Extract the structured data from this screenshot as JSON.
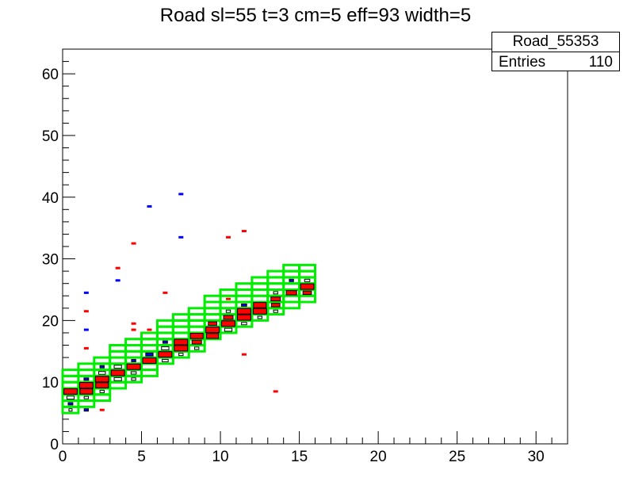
{
  "title": "Road sl=55 t=3 cm=5 eff=93 width=5",
  "stats": {
    "name": "Road_55353",
    "entries_label": "Entries",
    "entries_value": "110"
  },
  "colors": {
    "road": "#00ee00",
    "hit_major": "#ff0000",
    "hit_minor": "#0000ff",
    "box": "#000000"
  },
  "chart_data": {
    "type": "heatmap",
    "title": "Road sl=55 t=3 cm=5 eff=93 width=5",
    "xlim": [
      0,
      32
    ],
    "ylim": [
      0,
      64
    ],
    "x_ticks": [
      0,
      5,
      10,
      15,
      20,
      25,
      30
    ],
    "y_ticks": [
      0,
      10,
      20,
      30,
      40,
      50,
      60
    ],
    "grid": false,
    "legend": "stats box top-right",
    "road_cells": [
      [
        0,
        5
      ],
      [
        0,
        6
      ],
      [
        0,
        7
      ],
      [
        0,
        8
      ],
      [
        0,
        9
      ],
      [
        0,
        10
      ],
      [
        0,
        11
      ],
      [
        1,
        6
      ],
      [
        1,
        7
      ],
      [
        1,
        8
      ],
      [
        1,
        9
      ],
      [
        1,
        10
      ],
      [
        1,
        11
      ],
      [
        1,
        12
      ],
      [
        2,
        7
      ],
      [
        2,
        8
      ],
      [
        2,
        9
      ],
      [
        2,
        10
      ],
      [
        2,
        11
      ],
      [
        2,
        12
      ],
      [
        2,
        13
      ],
      [
        3,
        9
      ],
      [
        3,
        10
      ],
      [
        3,
        11
      ],
      [
        3,
        12
      ],
      [
        3,
        13
      ],
      [
        3,
        14
      ],
      [
        3,
        15
      ],
      [
        4,
        10
      ],
      [
        4,
        11
      ],
      [
        4,
        12
      ],
      [
        4,
        13
      ],
      [
        4,
        14
      ],
      [
        4,
        15
      ],
      [
        4,
        16
      ],
      [
        5,
        11
      ],
      [
        5,
        12
      ],
      [
        5,
        13
      ],
      [
        5,
        14
      ],
      [
        5,
        15
      ],
      [
        5,
        16
      ],
      [
        5,
        17
      ],
      [
        6,
        13
      ],
      [
        6,
        14
      ],
      [
        6,
        15
      ],
      [
        6,
        16
      ],
      [
        6,
        17
      ],
      [
        6,
        18
      ],
      [
        6,
        19
      ],
      [
        7,
        14
      ],
      [
        7,
        15
      ],
      [
        7,
        16
      ],
      [
        7,
        17
      ],
      [
        7,
        18
      ],
      [
        7,
        19
      ],
      [
        7,
        20
      ],
      [
        8,
        15
      ],
      [
        8,
        16
      ],
      [
        8,
        17
      ],
      [
        8,
        18
      ],
      [
        8,
        19
      ],
      [
        8,
        20
      ],
      [
        8,
        21
      ],
      [
        9,
        17
      ],
      [
        9,
        18
      ],
      [
        9,
        19
      ],
      [
        9,
        20
      ],
      [
        9,
        21
      ],
      [
        9,
        22
      ],
      [
        9,
        23
      ],
      [
        10,
        18
      ],
      [
        10,
        19
      ],
      [
        10,
        20
      ],
      [
        10,
        21
      ],
      [
        10,
        22
      ],
      [
        10,
        23
      ],
      [
        10,
        24
      ],
      [
        11,
        19
      ],
      [
        11,
        20
      ],
      [
        11,
        21
      ],
      [
        11,
        22
      ],
      [
        11,
        23
      ],
      [
        11,
        24
      ],
      [
        11,
        25
      ],
      [
        12,
        20
      ],
      [
        12,
        21
      ],
      [
        12,
        22
      ],
      [
        12,
        23
      ],
      [
        12,
        24
      ],
      [
        12,
        25
      ],
      [
        12,
        26
      ],
      [
        13,
        21
      ],
      [
        13,
        22
      ],
      [
        13,
        23
      ],
      [
        13,
        24
      ],
      [
        13,
        25
      ],
      [
        13,
        26
      ],
      [
        13,
        27
      ],
      [
        14,
        22
      ],
      [
        14,
        23
      ],
      [
        14,
        24
      ],
      [
        14,
        25
      ],
      [
        14,
        26
      ],
      [
        14,
        27
      ],
      [
        14,
        28
      ],
      [
        15,
        23
      ],
      [
        15,
        24
      ],
      [
        15,
        25
      ],
      [
        15,
        26
      ],
      [
        15,
        27
      ],
      [
        15,
        28
      ]
    ],
    "hit_bins": [
      {
        "x": 0.5,
        "y": 8.5,
        "w": 1.0
      },
      {
        "x": 0.5,
        "y": 7.5,
        "w": 0.3
      },
      {
        "x": 0.5,
        "y": 6.5,
        "w": 0.12,
        "c": "b"
      },
      {
        "x": 0.5,
        "y": 5.5,
        "w": 0.05
      },
      {
        "x": 1.5,
        "y": 9.5,
        "w": 1.0
      },
      {
        "x": 1.5,
        "y": 8.5,
        "w": 0.9
      },
      {
        "x": 1.5,
        "y": 7.5,
        "w": 0.1
      },
      {
        "x": 1.5,
        "y": 10.5,
        "w": 0.12,
        "c": "b"
      },
      {
        "x": 1.5,
        "y": 5.5,
        "w": 0.1,
        "c": "b"
      },
      {
        "x": 2.5,
        "y": 10.5,
        "w": 1.0
      },
      {
        "x": 2.5,
        "y": 9.5,
        "w": 0.9
      },
      {
        "x": 2.5,
        "y": 11.5,
        "w": 0.25
      },
      {
        "x": 2.5,
        "y": 8.5,
        "w": 0.1
      },
      {
        "x": 2.5,
        "y": 12.5,
        "w": 0.1,
        "c": "b"
      },
      {
        "x": 3.5,
        "y": 11.5,
        "w": 1.0
      },
      {
        "x": 3.5,
        "y": 10.5,
        "w": 0.3
      },
      {
        "x": 3.5,
        "y": 12.5,
        "w": 0.3
      },
      {
        "x": 4.5,
        "y": 12.5,
        "w": 1.0
      },
      {
        "x": 4.5,
        "y": 11.5,
        "w": 0.15
      },
      {
        "x": 4.5,
        "y": 13.5,
        "w": 0.1,
        "c": "b"
      },
      {
        "x": 4.5,
        "y": 10.5,
        "w": 0.1
      },
      {
        "x": 5.5,
        "y": 13.5,
        "w": 1.0
      },
      {
        "x": 5.5,
        "y": 14.5,
        "w": 0.3,
        "c": "b"
      },
      {
        "x": 6.5,
        "y": 14.5,
        "w": 1.0
      },
      {
        "x": 6.5,
        "y": 15.5,
        "w": 0.3
      },
      {
        "x": 6.5,
        "y": 13.5,
        "w": 0.2
      },
      {
        "x": 6.5,
        "y": 16.5,
        "w": 0.12,
        "c": "b"
      },
      {
        "x": 7.5,
        "y": 15.5,
        "w": 1.0
      },
      {
        "x": 7.5,
        "y": 16.5,
        "w": 1.0
      },
      {
        "x": 7.5,
        "y": 14.5,
        "w": 0.1
      },
      {
        "x": 8.5,
        "y": 17.5,
        "w": 0.9
      },
      {
        "x": 8.5,
        "y": 16.5,
        "w": 0.5
      },
      {
        "x": 8.5,
        "y": 15.5,
        "w": 0.1
      },
      {
        "x": 9.5,
        "y": 18.5,
        "w": 1.0
      },
      {
        "x": 9.5,
        "y": 17.5,
        "w": 0.8
      },
      {
        "x": 9.5,
        "y": 19.5,
        "w": 0.4,
        "c": "b"
      },
      {
        "x": 10.5,
        "y": 19.5,
        "w": 1.0
      },
      {
        "x": 10.5,
        "y": 20.5,
        "w": 0.5
      },
      {
        "x": 10.5,
        "y": 18.5,
        "w": 0.3
      },
      {
        "x": 10.5,
        "y": 21.5,
        "w": 0.1
      },
      {
        "x": 11.5,
        "y": 20.5,
        "w": 1.0
      },
      {
        "x": 11.5,
        "y": 21.5,
        "w": 1.0
      },
      {
        "x": 11.5,
        "y": 19.5,
        "w": 0.15
      },
      {
        "x": 11.5,
        "y": 22.5,
        "w": 0.15,
        "c": "b"
      },
      {
        "x": 12.5,
        "y": 21.5,
        "w": 1.0
      },
      {
        "x": 12.5,
        "y": 22.5,
        "w": 0.9
      },
      {
        "x": 12.5,
        "y": 20.5,
        "w": 0.1
      },
      {
        "x": 13.5,
        "y": 22.5,
        "w": 0.4
      },
      {
        "x": 13.5,
        "y": 23.5,
        "w": 0.5,
        "c": "b"
      },
      {
        "x": 13.5,
        "y": 21.5,
        "w": 0.1
      },
      {
        "x": 13.5,
        "y": 24.5,
        "w": 0.1
      },
      {
        "x": 14.5,
        "y": 24.5,
        "w": 0.6
      },
      {
        "x": 14.5,
        "y": 26.5,
        "w": 0.1,
        "c": "b"
      },
      {
        "x": 15.5,
        "y": 25.5,
        "w": 1.0
      },
      {
        "x": 15.5,
        "y": 24.5,
        "w": 0.4
      },
      {
        "x": 15.5,
        "y": 26.5,
        "w": 0.15
      }
    ],
    "outlier_bins": [
      {
        "x": 1.5,
        "y": 24.5,
        "c": "b"
      },
      {
        "x": 1.5,
        "y": 21.5,
        "c": "r"
      },
      {
        "x": 1.5,
        "y": 18.5,
        "c": "b"
      },
      {
        "x": 1.5,
        "y": 15.5,
        "c": "r"
      },
      {
        "x": 2.5,
        "y": 5.5,
        "c": "r"
      },
      {
        "x": 3.5,
        "y": 28.5,
        "c": "r"
      },
      {
        "x": 3.5,
        "y": 26.5,
        "c": "b"
      },
      {
        "x": 4.5,
        "y": 32.5,
        "c": "r"
      },
      {
        "x": 4.5,
        "y": 19.5,
        "c": "r"
      },
      {
        "x": 4.5,
        "y": 18.5,
        "c": "r"
      },
      {
        "x": 5.5,
        "y": 38.5,
        "c": "b"
      },
      {
        "x": 5.5,
        "y": 18.5,
        "c": "r"
      },
      {
        "x": 6.5,
        "y": 24.5,
        "c": "r"
      },
      {
        "x": 7.5,
        "y": 40.5,
        "c": "b"
      },
      {
        "x": 7.5,
        "y": 33.5,
        "c": "b"
      },
      {
        "x": 10.5,
        "y": 33.5,
        "c": "r"
      },
      {
        "x": 10.5,
        "y": 23.5,
        "c": "r"
      },
      {
        "x": 11.5,
        "y": 34.5,
        "c": "r"
      },
      {
        "x": 11.5,
        "y": 14.5,
        "c": "r"
      },
      {
        "x": 13.5,
        "y": 8.5,
        "c": "r"
      }
    ]
  }
}
